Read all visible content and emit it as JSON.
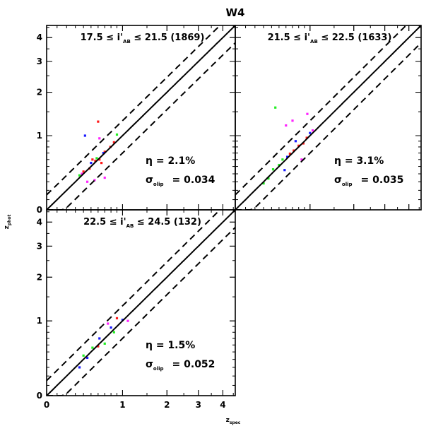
{
  "chart_data": {
    "type": "scatter",
    "title": "W4",
    "xlabel": "z_spec",
    "ylabel": "z_phot",
    "axis_scale": "transformed: display coordinate log10(1+z)",
    "xlim": [
      0,
      4.6
    ],
    "ylim": [
      0,
      4.6
    ],
    "ticks": [
      0,
      1,
      2,
      3,
      4
    ],
    "tick_labels": [
      "0",
      "1",
      "2",
      "3",
      "4"
    ],
    "series_colors": {
      "red": "#ff1a1a",
      "blue": "#1a1aff",
      "green": "#22ee22",
      "magenta": "#ff22ff"
    },
    "lines": {
      "identity": "solid",
      "outlier_bounds": "dashed, z_phot = z_spec ± 0.15(1+z_spec)"
    },
    "panels": [
      {
        "id": "top-left",
        "label_pre": "17.5 ≤ i'",
        "label_sub": "AB",
        "label_post": " ≤ 21.5 (1869)",
        "eta_label": "η = 2.1%",
        "sigma_sub": "olip",
        "sigma_value": "= 0.034",
        "points": [
          {
            "color": "red",
            "z_spec": 0.56,
            "z_phot": 0.58
          },
          {
            "color": "red",
            "z_spec": 0.62,
            "z_phot": 0.6
          },
          {
            "color": "red",
            "z_spec": 0.48,
            "z_phot": 0.47
          },
          {
            "color": "red",
            "z_spec": 0.7,
            "z_phot": 0.72
          },
          {
            "color": "red",
            "z_spec": 0.79,
            "z_phot": 0.8
          },
          {
            "color": "red",
            "z_spec": 0.4,
            "z_phot": 0.43
          },
          {
            "color": "red",
            "z_spec": 0.65,
            "z_phot": 0.55
          },
          {
            "color": "red",
            "z_spec": 0.52,
            "z_phot": 0.6
          },
          {
            "color": "red",
            "z_spec": 0.85,
            "z_phot": 0.88
          },
          {
            "color": "red",
            "z_spec": 0.6,
            "z_phot": 1.28
          },
          {
            "color": "magenta",
            "z_spec": 0.45,
            "z_phot": 0.3
          },
          {
            "color": "magenta",
            "z_spec": 0.55,
            "z_phot": 0.32
          },
          {
            "color": "magenta",
            "z_spec": 0.7,
            "z_phot": 0.35
          },
          {
            "color": "magenta",
            "z_spec": 0.38,
            "z_phot": 0.4
          },
          {
            "color": "magenta",
            "z_spec": 0.62,
            "z_phot": 0.95
          },
          {
            "color": "blue",
            "z_spec": 0.42,
            "z_phot": 1.0
          },
          {
            "color": "blue",
            "z_spec": 0.5,
            "z_phot": 0.55
          },
          {
            "color": "blue",
            "z_spec": 0.68,
            "z_phot": 0.7
          },
          {
            "color": "green",
            "z_spec": 0.35,
            "z_phot": 0.38
          },
          {
            "color": "green",
            "z_spec": 0.58,
            "z_phot": 0.62
          },
          {
            "color": "green",
            "z_spec": 0.9,
            "z_phot": 1.02
          }
        ]
      },
      {
        "id": "top-right",
        "label_pre": "21.5 ≤ i'",
        "label_sub": "AB",
        "label_post": " ≤ 22.5 (1633)",
        "eta_label": "η = 3.1%",
        "sigma_sub": "olip",
        "sigma_value": "= 0.035",
        "points": [
          {
            "color": "red",
            "z_spec": 0.72,
            "z_phot": 0.74
          },
          {
            "color": "red",
            "z_spec": 0.8,
            "z_phot": 0.82
          },
          {
            "color": "red",
            "z_spec": 0.88,
            "z_phot": 0.86
          },
          {
            "color": "red",
            "z_spec": 0.66,
            "z_phot": 0.69
          },
          {
            "color": "red",
            "z_spec": 0.94,
            "z_phot": 0.96
          },
          {
            "color": "green",
            "z_spec": 0.42,
            "z_phot": 0.46
          },
          {
            "color": "green",
            "z_spec": 0.5,
            "z_phot": 0.52
          },
          {
            "color": "green",
            "z_spec": 0.36,
            "z_phot": 0.34
          },
          {
            "color": "green",
            "z_spec": 0.55,
            "z_phot": 0.6
          },
          {
            "color": "green",
            "z_spec": 0.3,
            "z_phot": 0.28
          },
          {
            "color": "green",
            "z_spec": 0.45,
            "z_phot": 1.6
          },
          {
            "color": "blue",
            "z_spec": 0.62,
            "z_phot": 0.64
          },
          {
            "color": "blue",
            "z_spec": 0.75,
            "z_phot": 0.9
          },
          {
            "color": "blue",
            "z_spec": 0.58,
            "z_phot": 0.45
          },
          {
            "color": "blue",
            "z_spec": 1.0,
            "z_phot": 1.05
          },
          {
            "color": "magenta",
            "z_spec": 0.6,
            "z_phot": 1.2
          },
          {
            "color": "magenta",
            "z_spec": 0.7,
            "z_phot": 1.3
          },
          {
            "color": "magenta",
            "z_spec": 0.85,
            "z_phot": 0.6
          },
          {
            "color": "magenta",
            "z_spec": 1.05,
            "z_phot": 1.1
          },
          {
            "color": "magenta",
            "z_spec": 0.95,
            "z_phot": 1.45
          }
        ]
      },
      {
        "id": "bottom-left",
        "label_pre": "22.5 ≤ i'",
        "label_sub": "AB",
        "label_post": " ≤ 24.5 (132)",
        "eta_label": "η = 1.5%",
        "sigma_sub": "olip",
        "sigma_value": "= 0.052",
        "points": [
          {
            "color": "blue",
            "z_spec": 0.45,
            "z_phot": 0.42
          },
          {
            "color": "blue",
            "z_spec": 0.62,
            "z_phot": 0.7
          },
          {
            "color": "blue",
            "z_spec": 0.8,
            "z_phot": 0.88
          },
          {
            "color": "blue",
            "z_spec": 1.0,
            "z_phot": 1.02
          },
          {
            "color": "blue",
            "z_spec": 0.35,
            "z_phot": 0.3
          },
          {
            "color": "green",
            "z_spec": 0.52,
            "z_phot": 0.56
          },
          {
            "color": "green",
            "z_spec": 0.7,
            "z_phot": 0.62
          },
          {
            "color": "green",
            "z_spec": 0.4,
            "z_phot": 0.45
          },
          {
            "color": "green",
            "z_spec": 0.85,
            "z_phot": 0.8
          },
          {
            "color": "magenta",
            "z_spec": 0.75,
            "z_phot": 0.95
          },
          {
            "color": "magenta",
            "z_spec": 1.1,
            "z_phot": 1.0
          },
          {
            "color": "red",
            "z_spec": 0.9,
            "z_phot": 1.05
          },
          {
            "color": "red",
            "z_spec": 0.6,
            "z_phot": 0.58
          }
        ]
      }
    ]
  }
}
